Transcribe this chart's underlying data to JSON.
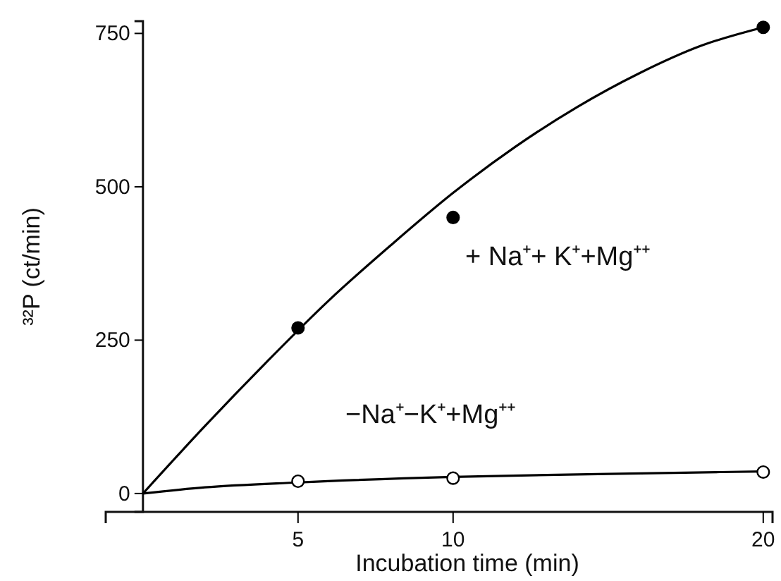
{
  "chart_data": {
    "type": "line",
    "xlabel": "Incubation time (min)",
    "ylabel": "³²P (ct/min)",
    "xlim": [
      -1.2,
      20.3
    ],
    "ylim": [
      -30,
      770
    ],
    "xticks": [
      5,
      10,
      20
    ],
    "yticks": [
      0,
      250,
      500,
      750
    ],
    "grid": false,
    "legend": false,
    "series": [
      {
        "type": "scatter",
        "marker": "circle",
        "color": "#000000",
        "x": [
          5,
          10,
          20
        ],
        "values": [
          270,
          450,
          760
        ]
      },
      {
        "type": "scatter",
        "marker": "circle",
        "color": "#ffffff",
        "x": [
          5,
          10,
          20
        ],
        "values": [
          20,
          25,
          35
        ]
      },
      {
        "name": "+ Na⁺+ K⁺+Mg⁺⁺",
        "color": "#000000",
        "x": [
          0,
          2,
          4,
          6,
          8,
          10,
          12,
          14,
          16,
          18,
          20
        ],
        "values": [
          0,
          110,
          215,
          315,
          405,
          490,
          565,
          630,
          685,
          730,
          760
        ]
      },
      {
        "name": "−Na⁺−K⁺+Mg⁺⁺",
        "color": "#000000",
        "x": [
          0,
          2,
          5,
          10,
          15,
          20
        ],
        "values": [
          0,
          10,
          18,
          27,
          32,
          36
        ]
      }
    ]
  }
}
